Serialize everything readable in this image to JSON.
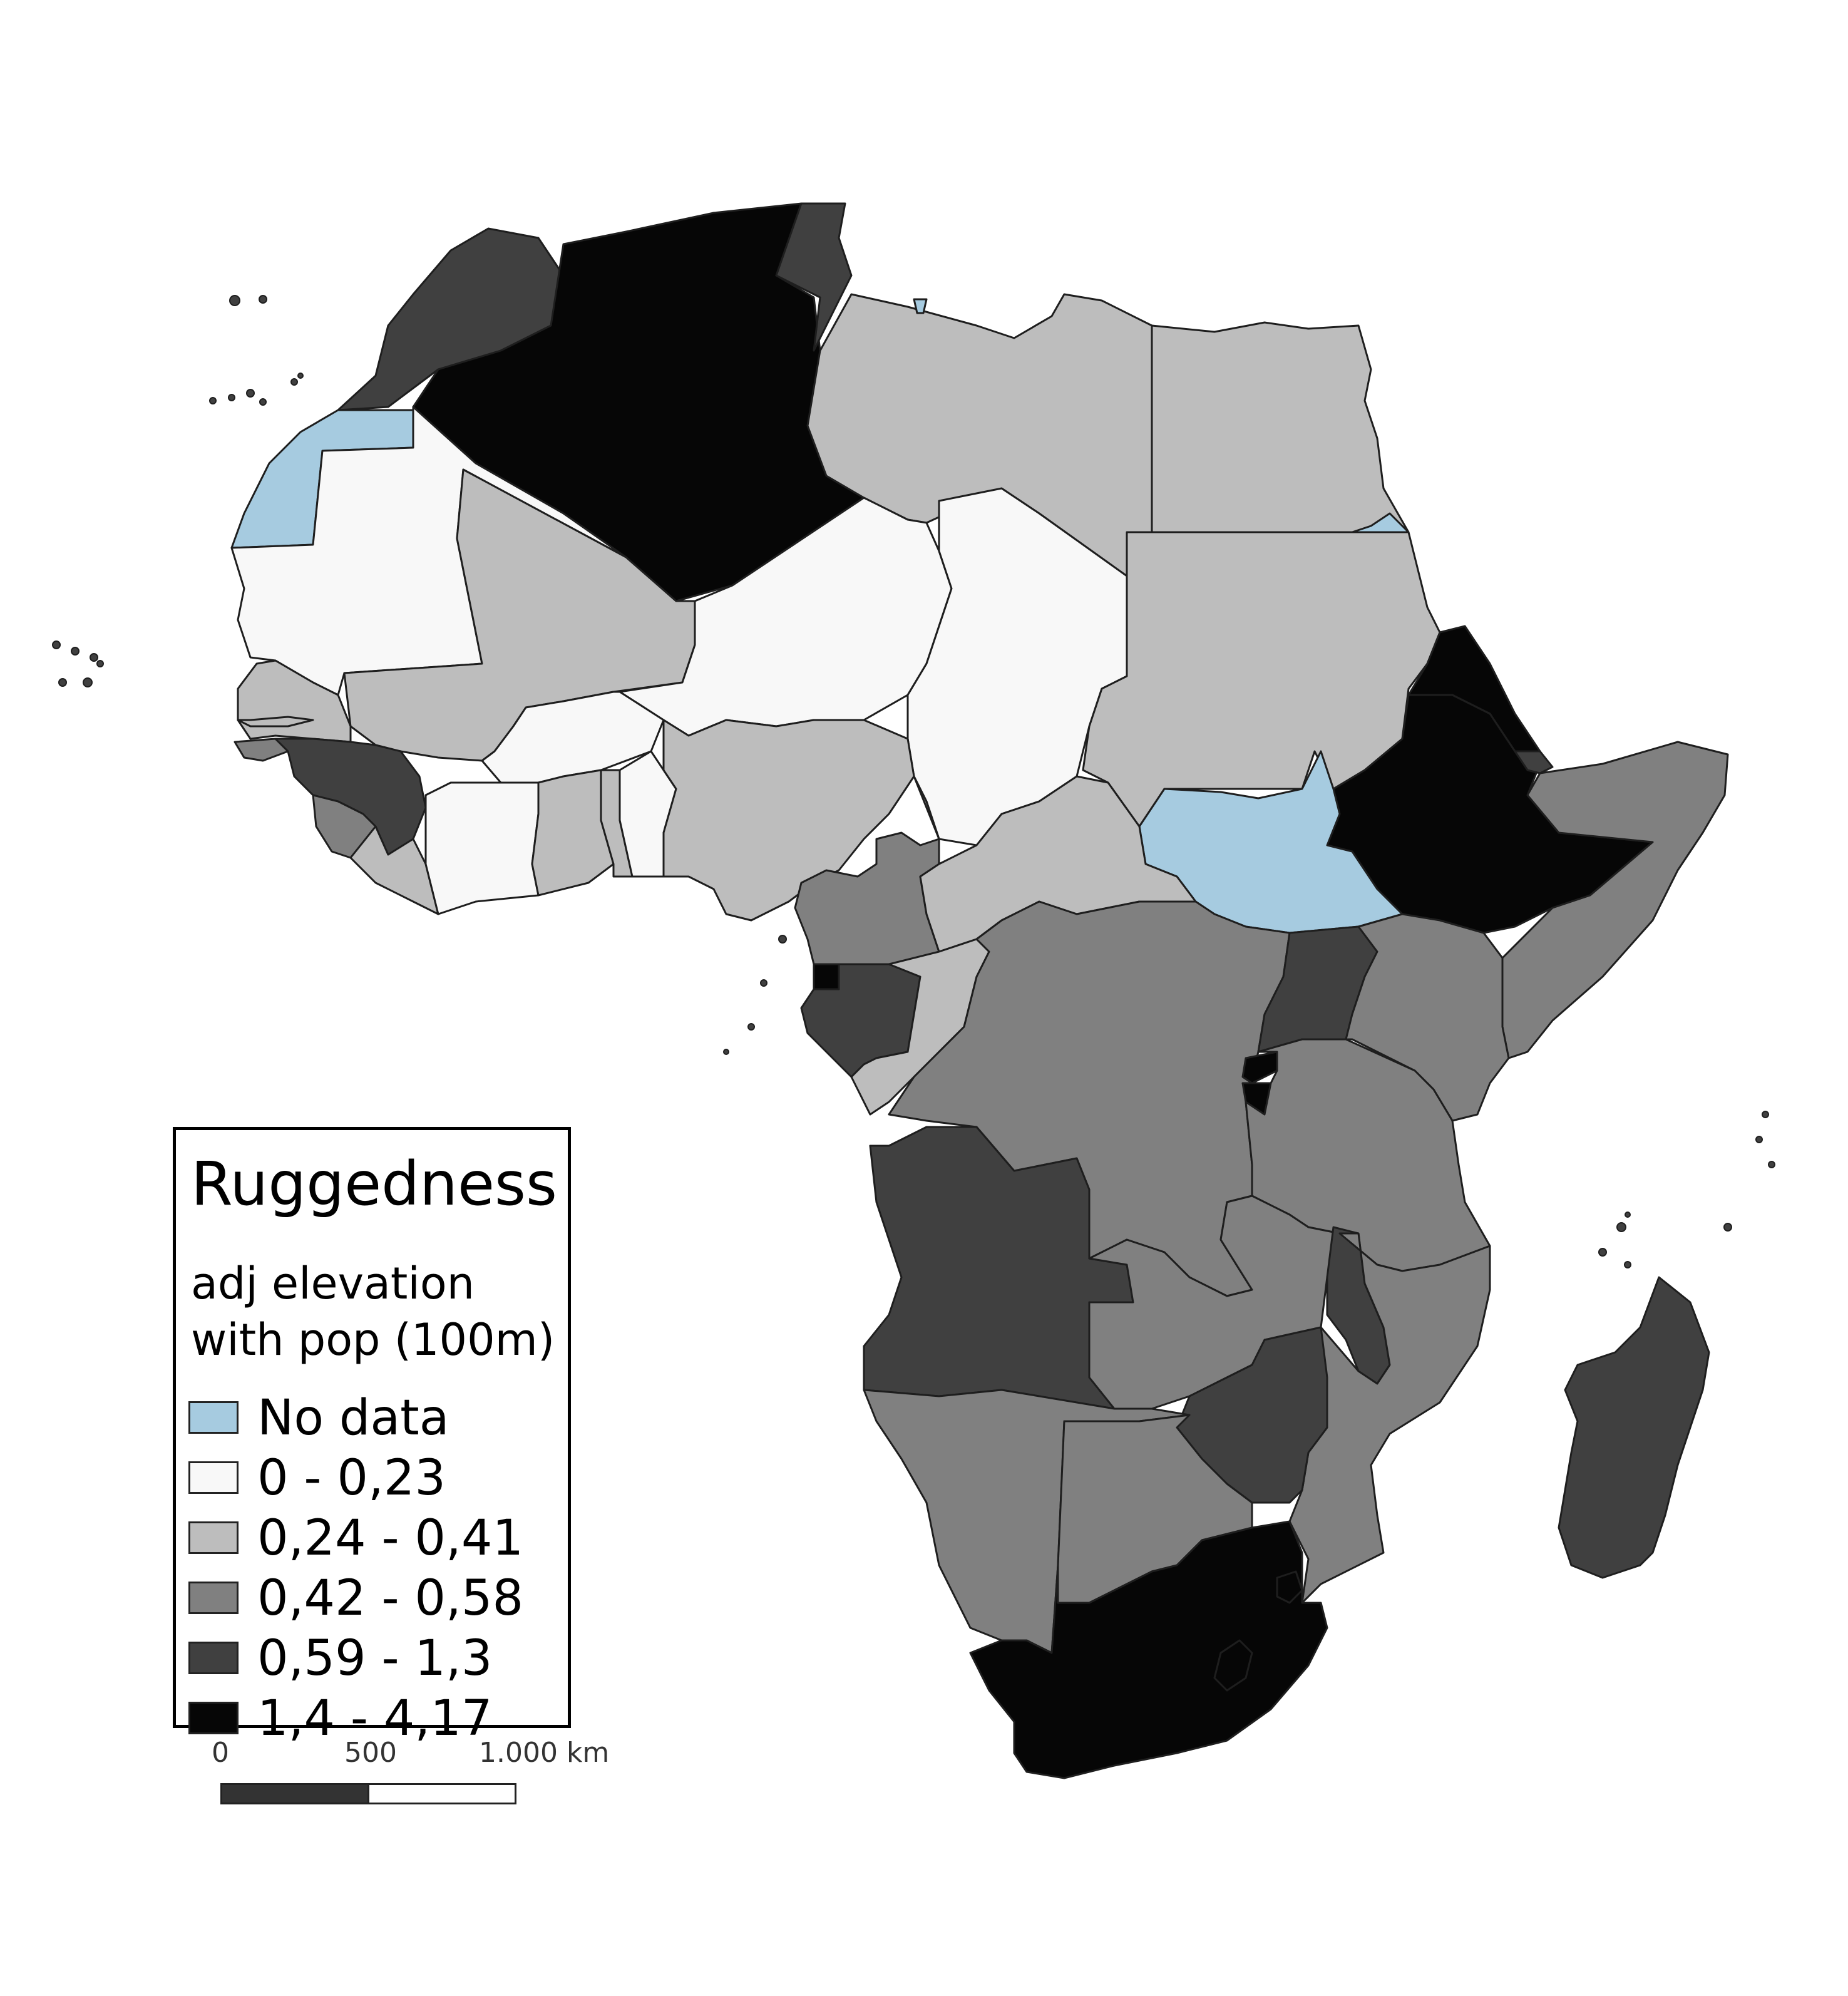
{
  "legend": {
    "title": "Ruggedness",
    "subtitle_line1": "adj elevation",
    "subtitle_line2": "with pop (100m)",
    "classes": [
      {
        "label": "No data",
        "color": "#a6cbe0"
      },
      {
        "label": "0 - 0,23",
        "color": "#f8f8f8"
      },
      {
        "label": "0,24 - 0,41",
        "color": "#bdbdbd"
      },
      {
        "label": "0,42 - 0,58",
        "color": "#808080"
      },
      {
        "label": "0,59 - 1,3",
        "color": "#404040"
      },
      {
        "label": "1,4 - 4,17",
        "color": "#060606"
      }
    ]
  },
  "scale_bar": {
    "labels": [
      "0",
      "500",
      "1.000 km"
    ],
    "colors": {
      "dark": "#333333",
      "light": "#ffffff"
    }
  },
  "map": {
    "region": "Africa",
    "regions": [
      {
        "name": "Morocco",
        "class": 4
      },
      {
        "name": "Western Sahara",
        "class": 0
      },
      {
        "name": "Algeria",
        "class": 5
      },
      {
        "name": "Tunisia",
        "class": 4
      },
      {
        "name": "Libya",
        "class": 2
      },
      {
        "name": "Egypt",
        "class": 2
      },
      {
        "name": "Mauritania",
        "class": 1
      },
      {
        "name": "Mali",
        "class": 2
      },
      {
        "name": "Niger",
        "class": 1
      },
      {
        "name": "Chad",
        "class": 1
      },
      {
        "name": "Sudan",
        "class": 2
      },
      {
        "name": "Eritrea",
        "class": 5
      },
      {
        "name": "Ethiopia",
        "class": 5
      },
      {
        "name": "Djibouti",
        "class": 4
      },
      {
        "name": "Somalia",
        "class": 3
      },
      {
        "name": "South Sudan",
        "class": 0
      },
      {
        "name": "Senegal",
        "class": 2
      },
      {
        "name": "Gambia",
        "class": 2
      },
      {
        "name": "Guinea-Bissau",
        "class": 3
      },
      {
        "name": "Guinea",
        "class": 4
      },
      {
        "name": "Sierra Leone",
        "class": 3
      },
      {
        "name": "Liberia",
        "class": 2
      },
      {
        "name": "Burkina Faso",
        "class": 1
      },
      {
        "name": "Cote d'Ivoire",
        "class": 1
      },
      {
        "name": "Ghana",
        "class": 2
      },
      {
        "name": "Togo",
        "class": 2
      },
      {
        "name": "Benin",
        "class": 1
      },
      {
        "name": "Nigeria",
        "class": 2
      },
      {
        "name": "Cameroon",
        "class": 3
      },
      {
        "name": "Central African Republic",
        "class": 2
      },
      {
        "name": "Equatorial Guinea",
        "class": 5
      },
      {
        "name": "Gabon",
        "class": 4
      },
      {
        "name": "Republic of the Congo",
        "class": 2
      },
      {
        "name": "DR Congo",
        "class": 3
      },
      {
        "name": "Uganda",
        "class": 4
      },
      {
        "name": "Kenya",
        "class": 3
      },
      {
        "name": "Rwanda",
        "class": 5
      },
      {
        "name": "Burundi",
        "class": 5
      },
      {
        "name": "Tanzania",
        "class": 3
      },
      {
        "name": "Angola",
        "class": 4
      },
      {
        "name": "Zambia",
        "class": 3
      },
      {
        "name": "Malawi",
        "class": 4
      },
      {
        "name": "Mozambique",
        "class": 3
      },
      {
        "name": "Zimbabwe",
        "class": 4
      },
      {
        "name": "Namibia",
        "class": 3
      },
      {
        "name": "Botswana",
        "class": 3
      },
      {
        "name": "South Africa",
        "class": 5
      },
      {
        "name": "Lesotho",
        "class": 5
      },
      {
        "name": "Eswatini",
        "class": 5
      },
      {
        "name": "Madagascar",
        "class": 4
      },
      {
        "name": "Halaib Triangle",
        "class": 0
      },
      {
        "name": "Lake",
        "class": 0
      }
    ]
  }
}
